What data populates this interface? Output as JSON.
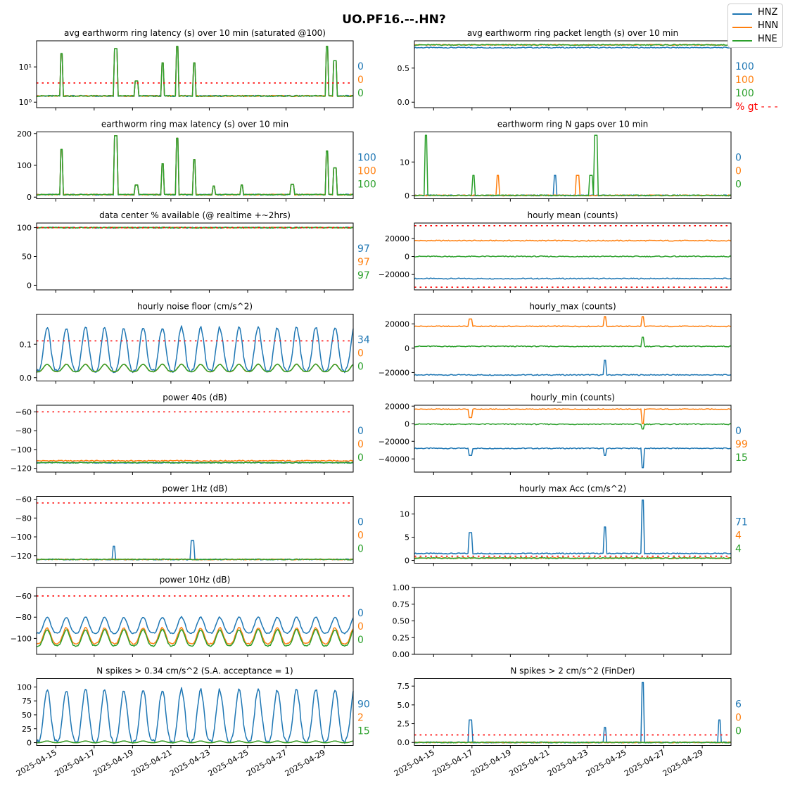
{
  "figure": {
    "title": "UO.PF16.--.HN?",
    "legend": [
      {
        "label": "HNZ",
        "color": "#1f77b4"
      },
      {
        "label": "HNN",
        "color": "#ff7f0e"
      },
      {
        "label": "HNE",
        "color": "#2ca02c"
      }
    ],
    "threshold_color": "#ff0000"
  },
  "chart_data": [
    {
      "type": "line",
      "title": "avg earthworm ring latency (s)   over 10 min (saturated @100)",
      "scale": "log",
      "ylim": [
        0.7,
        55
      ],
      "yticks": [
        1,
        10
      ],
      "ytick_labels": [
        "10⁰",
        "10¹"
      ],
      "threshold": 3.5,
      "date_range": [
        "2025-04-14",
        "2025-04-30T12:00"
      ],
      "baselines": [
        1.5,
        1.5,
        1.5
      ],
      "events": [
        {
          "date": "2025-04-15T07:00",
          "value": 24
        },
        {
          "date": "2025-04-18T03:00",
          "value": 33
        },
        {
          "date": "2025-04-19T05:00",
          "value": 4
        },
        {
          "date": "2025-04-20T14:00",
          "value": 13
        },
        {
          "date": "2025-04-21T08:00",
          "value": 38
        },
        {
          "date": "2025-04-22T05:00",
          "value": 13
        },
        {
          "date": "2025-04-29T03:00",
          "value": 38
        },
        {
          "date": "2025-04-29T13:00",
          "value": 15
        }
      ],
      "annotations": [
        {
          "text": "0",
          "color": "#1f77b4"
        },
        {
          "text": "0",
          "color": "#ff7f0e"
        },
        {
          "text": "0",
          "color": "#2ca02c"
        }
      ]
    },
    {
      "type": "line",
      "title": "avg earthworm ring packet length (s)   over 10 min",
      "ylim": [
        -0.08,
        0.9
      ],
      "yticks": [
        0.0,
        0.5
      ],
      "ytick_labels": [
        "0.0",
        "0.5"
      ],
      "date_range": [
        "2025-04-14",
        "2025-04-30T12:00"
      ],
      "baselines": [
        0.8,
        0.84,
        0.84
      ],
      "annotations": [
        {
          "text": "100",
          "color": "#1f77b4"
        },
        {
          "text": "100",
          "color": "#ff7f0e"
        },
        {
          "text": "100",
          "color": "#2ca02c"
        },
        {
          "text": "% gt - - -",
          "color": "#ff0000"
        }
      ]
    },
    {
      "type": "line",
      "title": "earthworm ring max latency (s)   over 10 min",
      "ylim": [
        -5,
        205
      ],
      "yticks": [
        0,
        100,
        200
      ],
      "ytick_labels": [
        "0",
        "100",
        "200"
      ],
      "date_range": [
        "2025-04-14",
        "2025-04-30T12:00"
      ],
      "baselines": [
        8,
        8,
        8
      ],
      "events": [
        {
          "date": "2025-04-15T07:00",
          "value": 150
        },
        {
          "date": "2025-04-18T03:00",
          "value": 193
        },
        {
          "date": "2025-04-19T05:00",
          "value": 38
        },
        {
          "date": "2025-04-20T14:00",
          "value": 105
        },
        {
          "date": "2025-04-21T08:00",
          "value": 185
        },
        {
          "date": "2025-04-22T05:00",
          "value": 118
        },
        {
          "date": "2025-04-23T06:00",
          "value": 35
        },
        {
          "date": "2025-04-24T17:00",
          "value": 38
        },
        {
          "date": "2025-04-27T08:00",
          "value": 40
        },
        {
          "date": "2025-04-29T03:00",
          "value": 145
        },
        {
          "date": "2025-04-29T13:00",
          "value": 92
        }
      ],
      "annotations": [
        {
          "text": "100",
          "color": "#1f77b4"
        },
        {
          "text": "100",
          "color": "#ff7f0e"
        },
        {
          "text": "100",
          "color": "#2ca02c"
        }
      ]
    },
    {
      "type": "line",
      "title": "earthworm ring N gaps   over 10 min",
      "ylim": [
        -1,
        19
      ],
      "yticks": [
        0,
        10
      ],
      "ytick_labels": [
        "0",
        "10"
      ],
      "date_range": [
        "2025-04-14",
        "2025-04-30T12:00"
      ],
      "baselines": [
        0,
        0,
        0
      ],
      "events": [
        {
          "date": "2025-04-14T14:00",
          "value": 18,
          "series": 2
        },
        {
          "date": "2025-04-17T02:00",
          "value": 6,
          "series": 2
        },
        {
          "date": "2025-04-18T08:00",
          "value": 6,
          "series": 1
        },
        {
          "date": "2025-04-21T08:00",
          "value": 6,
          "series": 0
        },
        {
          "date": "2025-04-22T12:00",
          "value": 6,
          "series": 1
        },
        {
          "date": "2025-04-23T05:00",
          "value": 6,
          "series": 2
        },
        {
          "date": "2025-04-23T11:00",
          "value": 18,
          "series": 2
        }
      ],
      "annotations": [
        {
          "text": "0",
          "color": "#1f77b4"
        },
        {
          "text": "0",
          "color": "#ff7f0e"
        },
        {
          "text": "0",
          "color": "#2ca02c"
        }
      ]
    },
    {
      "type": "line",
      "title": "data center % available (@ realtime +~2hrs)",
      "ylim": [
        -8,
        108
      ],
      "yticks": [
        0,
        50,
        100
      ],
      "ytick_labels": [
        "0",
        "50",
        "100"
      ],
      "threshold": 100,
      "date_range": [
        "2025-04-14",
        "2025-04-30T12:00"
      ],
      "baselines": [
        100,
        100,
        100
      ],
      "annotations": [
        {
          "text": "97",
          "color": "#1f77b4"
        },
        {
          "text": "97",
          "color": "#ff7f0e"
        },
        {
          "text": "97",
          "color": "#2ca02c"
        }
      ]
    },
    {
      "type": "line",
      "title": "hourly mean (counts)",
      "ylim": [
        -37000,
        37000
      ],
      "yticks": [
        -20000,
        0,
        20000
      ],
      "ytick_labels": [
        "−20000",
        "0",
        "20000"
      ],
      "thresholds": [
        34000,
        -34000
      ],
      "date_range": [
        "2025-04-14",
        "2025-04-30T12:00"
      ],
      "baselines": [
        -24500,
        17500,
        0
      ],
      "annotations": []
    },
    {
      "type": "line",
      "title": "hourly noise floor (cm/s^2)",
      "ylim": [
        -0.01,
        0.19
      ],
      "yticks": [
        0.0,
        0.1
      ],
      "ytick_labels": [
        "0.0",
        "0.1"
      ],
      "threshold": 0.11,
      "date_range": [
        "2025-04-14",
        "2025-04-30T12:00"
      ],
      "daily_cycle": [
        {
          "low": 0.02,
          "high": 0.15
        },
        {
          "low": 0.018,
          "high": 0.04
        },
        {
          "low": 0.018,
          "high": 0.04
        }
      ],
      "annotations": [
        {
          "text": "34",
          "color": "#1f77b4"
        },
        {
          "text": "0",
          "color": "#ff7f0e"
        },
        {
          "text": "0",
          "color": "#2ca02c"
        }
      ]
    },
    {
      "type": "line",
      "title": "hourly_max (counts)",
      "ylim": [
        -27000,
        28000
      ],
      "yticks": [
        -20000,
        0,
        20000
      ],
      "ytick_labels": [
        "−20000",
        "0",
        "20000"
      ],
      "date_range": [
        "2025-04-14",
        "2025-04-30T12:00"
      ],
      "baselines": [
        -22000,
        18000,
        1500
      ],
      "events": [
        {
          "date": "2025-04-16T22:00",
          "value": 24000,
          "series": 1
        },
        {
          "date": "2025-04-23T22:00",
          "value": 26000,
          "series": 1
        },
        {
          "date": "2025-04-25T22:00",
          "value": 26000,
          "series": 1
        },
        {
          "date": "2025-04-23T22:00",
          "value": -10000,
          "series": 0
        },
        {
          "date": "2025-04-25T22:00",
          "value": 9000,
          "series": 2
        }
      ],
      "annotations": []
    },
    {
      "type": "line",
      "title": "power 40s (dB)",
      "ylim": [
        -124,
        -53
      ],
      "yticks": [
        -120,
        -100,
        -80,
        -60
      ],
      "ytick_labels": [
        "−120",
        "−100",
        "−80",
        "−60"
      ],
      "threshold": -60,
      "date_range": [
        "2025-04-14",
        "2025-04-30T12:00"
      ],
      "baselines": [
        -114,
        -112,
        -114
      ],
      "annotations": [
        {
          "text": "0",
          "color": "#1f77b4"
        },
        {
          "text": "0",
          "color": "#ff7f0e"
        },
        {
          "text": "0",
          "color": "#2ca02c"
        }
      ]
    },
    {
      "type": "line",
      "title": "hourly_min (counts)",
      "ylim": [
        -55000,
        21000
      ],
      "yticks": [
        -40000,
        -20000,
        0,
        20000
      ],
      "ytick_labels": [
        "−40000",
        "−20000",
        "0",
        "20000"
      ],
      "date_range": [
        "2025-04-14",
        "2025-04-30T12:00"
      ],
      "baselines": [
        -28000,
        16500,
        -500
      ],
      "events": [
        {
          "date": "2025-04-25T22:00",
          "value": -50000,
          "series": 0
        },
        {
          "date": "2025-04-16T22:00",
          "value": -36000,
          "series": 0
        },
        {
          "date": "2025-04-23T22:00",
          "value": -36000,
          "series": 0
        },
        {
          "date": "2025-04-16T22:00",
          "value": 7000,
          "series": 1
        },
        {
          "date": "2025-04-25T22:00",
          "value": 0,
          "series": 1
        },
        {
          "date": "2025-04-25T22:00",
          "value": -6000,
          "series": 2
        }
      ],
      "annotations": [
        {
          "text": "0",
          "color": "#1f77b4"
        },
        {
          "text": "99",
          "color": "#ff7f0e"
        },
        {
          "text": "15",
          "color": "#2ca02c"
        }
      ]
    },
    {
      "type": "line",
      "title": "power 1Hz (dB)",
      "ylim": [
        -128,
        -57
      ],
      "yticks": [
        -120,
        -100,
        -80,
        -60
      ],
      "ytick_labels": [
        "−120",
        "−100",
        "−80",
        "−60"
      ],
      "threshold": -64,
      "date_range": [
        "2025-04-14",
        "2025-04-30T12:00"
      ],
      "baselines": [
        -124,
        -124,
        -124
      ],
      "events": [
        {
          "date": "2025-04-18T01:00",
          "value": -110,
          "series": 0
        },
        {
          "date": "2025-04-22T03:00",
          "value": -104,
          "series": 0
        }
      ],
      "annotations": [
        {
          "text": "0",
          "color": "#1f77b4"
        },
        {
          "text": "0",
          "color": "#ff7f0e"
        },
        {
          "text": "0",
          "color": "#2ca02c"
        }
      ]
    },
    {
      "type": "line",
      "title": "hourly max Acc (cm/s^2)",
      "ylim": [
        -0.6,
        13.8
      ],
      "yticks": [
        0,
        5,
        10
      ],
      "ytick_labels": [
        "0",
        "5",
        "10"
      ],
      "threshold": 0.9,
      "date_range": [
        "2025-04-14",
        "2025-04-30T12:00"
      ],
      "baselines": [
        1.5,
        0.5,
        0.5
      ],
      "events": [
        {
          "date": "2025-04-16T22:00",
          "value": 6,
          "series": 0
        },
        {
          "date": "2025-04-23T22:00",
          "value": 7.2,
          "series": 0
        },
        {
          "date": "2025-04-25T22:00",
          "value": 13,
          "series": 0
        }
      ],
      "annotations": [
        {
          "text": "71",
          "color": "#1f77b4"
        },
        {
          "text": "4",
          "color": "#ff7f0e"
        },
        {
          "text": "4",
          "color": "#2ca02c"
        }
      ]
    },
    {
      "type": "line",
      "title": "power 10Hz (dB)",
      "ylim": [
        -115,
        -52
      ],
      "yticks": [
        -100,
        -80,
        -60
      ],
      "ytick_labels": [
        "−100",
        "−80",
        "−60"
      ],
      "threshold": -60,
      "date_range": [
        "2025-04-14",
        "2025-04-30T12:00"
      ],
      "daily_cycle": [
        {
          "low": -95,
          "high": -80
        },
        {
          "low": -105,
          "high": -90
        },
        {
          "low": -107,
          "high": -92
        }
      ],
      "annotations": [
        {
          "text": "0",
          "color": "#1f77b4"
        },
        {
          "text": "0",
          "color": "#ff7f0e"
        },
        {
          "text": "0",
          "color": "#2ca02c"
        }
      ]
    },
    {
      "type": "line",
      "title": "",
      "empty": true,
      "ylim": [
        0,
        1
      ],
      "yticks": [
        0,
        0.25,
        0.5,
        0.75,
        1
      ],
      "ytick_labels": [
        "0.00",
        "0.25",
        "0.50",
        "0.75",
        "1.00"
      ],
      "annotations": []
    },
    {
      "type": "line",
      "title": "N spikes > 0.34 cm/s^2 (S.A. acceptance = 1)",
      "ylim": [
        -5,
        115
      ],
      "yticks": [
        0,
        25,
        50,
        75,
        100
      ],
      "ytick_labels": [
        "0",
        "25",
        "50",
        "75",
        "100"
      ],
      "date_range": [
        "2025-04-14",
        "2025-04-30T12:00"
      ],
      "daily_cycle": [
        {
          "low": 2,
          "high": 95
        },
        {
          "low": 0,
          "high": 3
        },
        {
          "low": 0,
          "high": 3
        }
      ],
      "xticks": [
        "2025-04-15",
        "2025-04-17",
        "2025-04-19",
        "2025-04-21",
        "2025-04-23",
        "2025-04-25",
        "2025-04-27",
        "2025-04-29"
      ],
      "annotations": [
        {
          "text": "90",
          "color": "#1f77b4"
        },
        {
          "text": "2",
          "color": "#ff7f0e"
        },
        {
          "text": "15",
          "color": "#2ca02c"
        }
      ]
    },
    {
      "type": "line",
      "title": "N spikes > 2 cm/s^2 (FinDer)",
      "ylim": [
        -0.4,
        8.5
      ],
      "yticks": [
        0,
        2.5,
        5,
        7.5
      ],
      "ytick_labels": [
        "0.0",
        "2.5",
        "5.0",
        "7.5"
      ],
      "threshold": 1,
      "date_range": [
        "2025-04-14",
        "2025-04-30T12:00"
      ],
      "baselines": [
        0,
        0,
        0
      ],
      "events": [
        {
          "date": "2025-04-25T22:00",
          "value": 8,
          "series": 0
        },
        {
          "date": "2025-04-16T22:00",
          "value": 3,
          "series": 0
        },
        {
          "date": "2025-04-23T22:00",
          "value": 2,
          "series": 0
        },
        {
          "date": "2025-04-29T22:00",
          "value": 3,
          "series": 0
        }
      ],
      "xticks": [
        "2025-04-15",
        "2025-04-17",
        "2025-04-19",
        "2025-04-21",
        "2025-04-23",
        "2025-04-25",
        "2025-04-27",
        "2025-04-29"
      ],
      "annotations": [
        {
          "text": "6",
          "color": "#1f77b4"
        },
        {
          "text": "0",
          "color": "#ff7f0e"
        },
        {
          "text": "0",
          "color": "#2ca02c"
        }
      ]
    }
  ]
}
